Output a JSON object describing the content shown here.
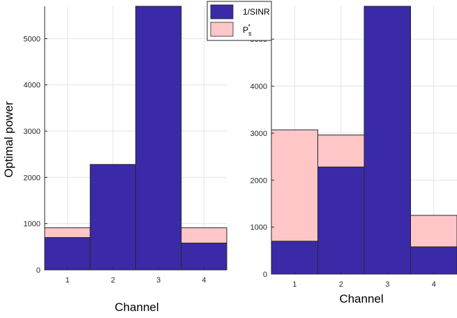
{
  "chart_data": [
    {
      "type": "bar",
      "stacked": true,
      "categories": [
        "1",
        "2",
        "3",
        "4"
      ],
      "series": [
        {
          "name": "1/SINR",
          "values": [
            700,
            2280,
            5900,
            580
          ]
        },
        {
          "name": "P_s*",
          "values": [
            210,
            0,
            0,
            330
          ]
        }
      ],
      "xlabel": "Channel",
      "ylabel": "Optimal power",
      "ylim": [
        0,
        5700
      ],
      "yticks": [
        0,
        1000,
        2000,
        3000,
        4000,
        5000
      ],
      "grid": true,
      "legend": "none"
    },
    {
      "type": "bar",
      "stacked": true,
      "categories": [
        "1",
        "2",
        "3",
        "4"
      ],
      "series": [
        {
          "name": "1/SINR",
          "values": [
            700,
            2280,
            5900,
            580
          ]
        },
        {
          "name": "P_s*",
          "values": [
            2370,
            680,
            0,
            670
          ]
        }
      ],
      "xlabel": "Channel",
      "ylabel": "",
      "ylim": [
        0,
        5700
      ],
      "yticks": [
        0,
        1000,
        2000,
        3000,
        4000,
        5000
      ],
      "grid": true,
      "legend": "top-left"
    }
  ],
  "legend": {
    "items": [
      {
        "label": "1/SINR",
        "color": "#3a2aa8"
      },
      {
        "label": "P",
        "subscript": "s",
        "superscript": "*",
        "color": "#ffc6c8"
      }
    ]
  },
  "colors": {
    "sinr": "#3a2aa8",
    "ps": "#ffc6c8",
    "grid": "#e3e3e3",
    "axis": "#262626"
  }
}
